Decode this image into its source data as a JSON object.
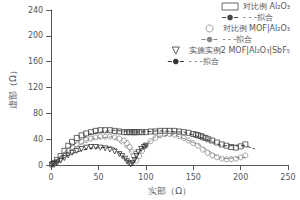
{
  "chart_data": {
    "type": "scatter",
    "xlabel": "实部（Ω）",
    "ylabel": "虚部（Ω）",
    "xlim": [
      0,
      250
    ],
    "ylim": [
      0,
      240
    ],
    "xticks": [
      0,
      50,
      100,
      150,
      200,
      250
    ],
    "yticks": [
      0,
      40,
      80,
      120,
      160,
      200,
      240
    ],
    "grid": false,
    "legend": "upper right",
    "series": [
      {
        "name": "对比例 Al₂O₃",
        "type": "scatter",
        "marker": "square",
        "color": "#444444",
        "x": [
          1,
          3,
          6,
          10,
          14,
          18,
          22,
          27,
          32,
          37,
          42,
          47,
          52,
          57,
          62,
          67,
          72,
          77,
          80,
          83,
          85,
          87,
          88,
          90,
          93,
          96,
          100,
          105,
          110,
          115,
          120,
          125,
          130,
          135,
          140,
          145,
          150,
          153,
          155,
          158,
          160,
          163,
          166,
          170,
          175,
          180,
          185,
          190,
          195,
          200,
          205
        ],
        "values": [
          1,
          3,
          8,
          14,
          22,
          30,
          36,
          42,
          46,
          49,
          51,
          53,
          54,
          54,
          54,
          53,
          52,
          51,
          51,
          51,
          51,
          51,
          51,
          51,
          51,
          51,
          51,
          52,
          52,
          53,
          53,
          53,
          53,
          52,
          51,
          50,
          48,
          47,
          46,
          45,
          43,
          42,
          40,
          38,
          35,
          32,
          30,
          28,
          27,
          29,
          32
        ]
      },
      {
        "name": "- - -拟合",
        "type": "line",
        "line_style": "dashed",
        "color": "#444444",
        "x": [
          0,
          8,
          20,
          40,
          65,
          90,
          115,
          140,
          160,
          180,
          205,
          215
        ],
        "values": [
          0,
          10,
          28,
          48,
          54,
          51,
          53,
          51,
          42,
          30,
          30,
          25
        ]
      },
      {
        "name": "对比例 MOF|Al₂O₃",
        "type": "scatter",
        "marker": "circle",
        "color": "#888888",
        "x": [
          1,
          3,
          6,
          10,
          14,
          18,
          22,
          27,
          32,
          37,
          42,
          47,
          52,
          57,
          62,
          67,
          72,
          77,
          80,
          83,
          85,
          87,
          90,
          93,
          96,
          100,
          105,
          110,
          115,
          120,
          125,
          130,
          135,
          140,
          145,
          150,
          155,
          160,
          165,
          170,
          175,
          180,
          185,
          190,
          195,
          200,
          205
        ],
        "values": [
          1,
          2,
          5,
          10,
          16,
          22,
          27,
          32,
          36,
          39,
          41,
          43,
          44,
          44,
          44,
          43,
          41,
          38,
          34,
          28,
          21,
          14,
          7,
          14,
          22,
          30,
          37,
          42,
          46,
          48,
          48,
          47,
          45,
          42,
          38,
          34,
          30,
          24,
          19,
          15,
          12,
          10,
          9,
          9,
          10,
          12,
          15
        ]
      },
      {
        "name": "- - -拟合",
        "type": "line",
        "line_style": "dashed",
        "color": "#888888",
        "x": [
          0,
          8,
          20,
          40,
          65,
          85,
          93,
          110,
          130,
          155,
          180,
          205
        ],
        "values": [
          0,
          8,
          22,
          40,
          44,
          20,
          22,
          44,
          47,
          32,
          10,
          12
        ]
      },
      {
        "name": "实施实例2 MOF|Al₂O₃|SbF₅",
        "type": "scatter",
        "marker": "triangle_down",
        "color": "#333333",
        "x": [
          1,
          3,
          6,
          10,
          14,
          18,
          22,
          27,
          32,
          37,
          42,
          47,
          52,
          57,
          62,
          67,
          72,
          75,
          78,
          80,
          82,
          84,
          86,
          88,
          90,
          92,
          95,
          98,
          100
        ],
        "values": [
          1,
          2,
          4,
          7,
          11,
          15,
          19,
          22,
          25,
          27,
          28,
          28,
          27,
          26,
          24,
          21,
          17,
          14,
          10,
          6,
          3,
          1,
          3,
          8,
          14,
          20,
          25,
          28,
          30
        ]
      },
      {
        "name": "- - -拟合",
        "type": "line",
        "line_style": "dashed",
        "color": "#333333",
        "x": [
          0,
          8,
          20,
          40,
          65,
          80,
          86,
          95,
          102
        ],
        "values": [
          0,
          6,
          17,
          26,
          28,
          8,
          2,
          26,
          30
        ]
      }
    ]
  }
}
